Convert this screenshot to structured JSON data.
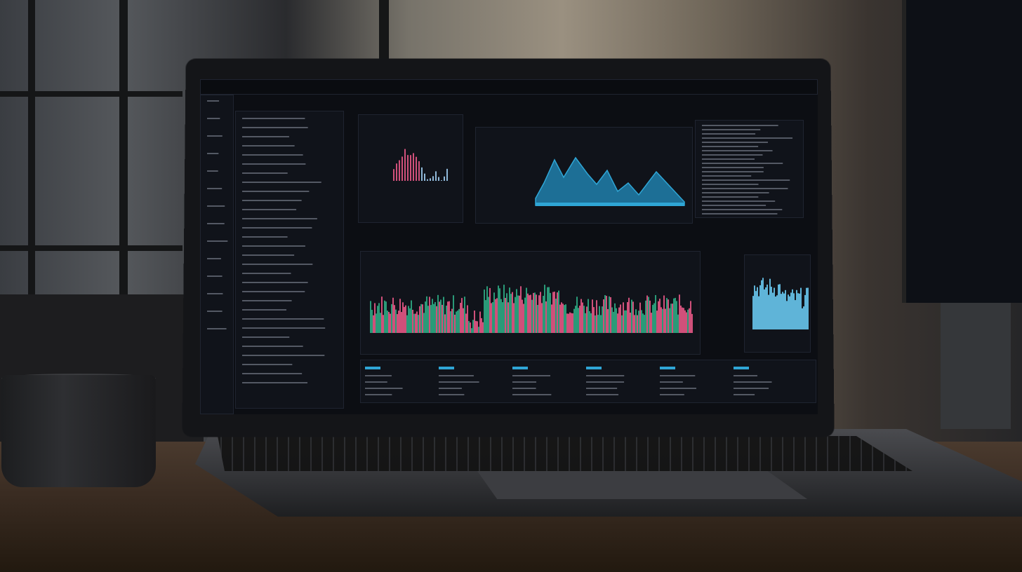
{
  "scene": {
    "objects": [
      "window",
      "desk",
      "mug",
      "laptop",
      "monitor"
    ]
  },
  "colors": {
    "accent_cyan": "#2fa6d6",
    "up_green": "#2a9a78",
    "down_pink": "#d0507a",
    "screen_bg": "#0c0e13",
    "panel_bg": "#10131a"
  },
  "icons": [
    "dashboard-icon",
    "chart-icon",
    "settings-icon",
    "user-icon",
    "bell-icon",
    "search-icon"
  ]
}
